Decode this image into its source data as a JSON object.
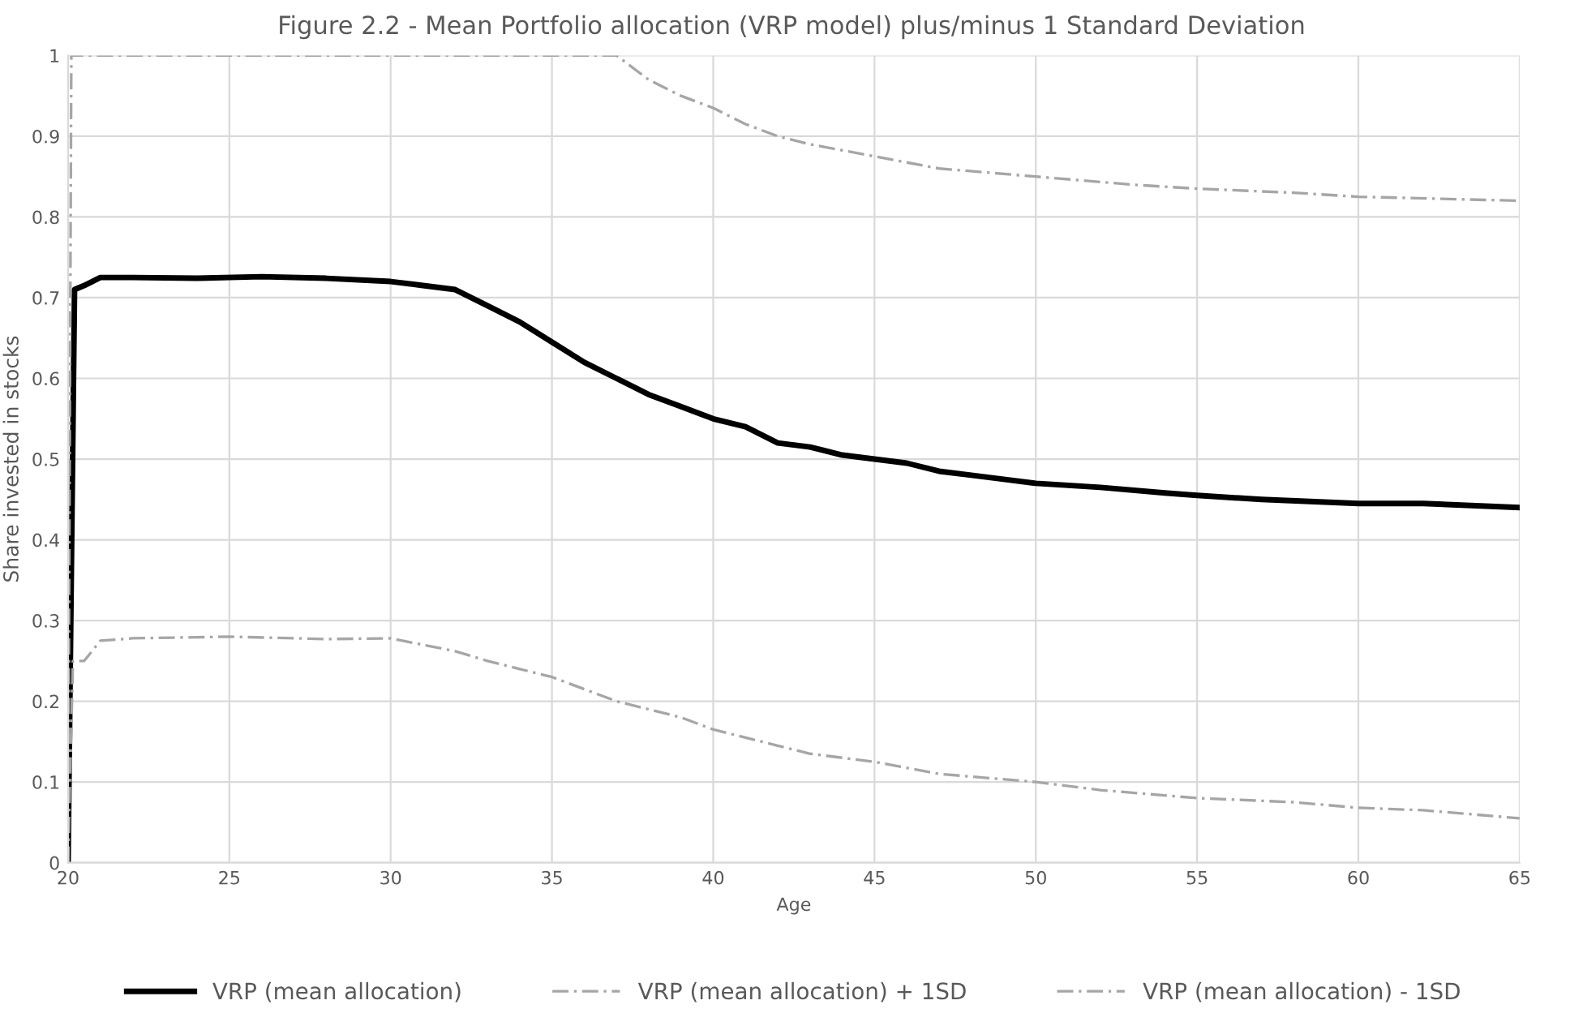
{
  "chart_data": {
    "type": "line",
    "title": "Figure 2.2 - Mean Portfolio allocation (VRP model) plus/minus 1 Standard Deviation",
    "xlabel": "Age",
    "ylabel": "Share invested in stocks",
    "xlim": [
      20,
      65
    ],
    "xticks": [
      20,
      25,
      30,
      35,
      40,
      45,
      50,
      55,
      60,
      65
    ],
    "ylim": [
      0,
      1
    ],
    "yticks": [
      0,
      0.1,
      0.2,
      0.3,
      0.4,
      0.5,
      0.6,
      0.7,
      0.8,
      0.9,
      1
    ],
    "grid": true,
    "legend": "bottom",
    "marker": "none",
    "series": [
      {
        "name": "VRP (mean allocation)",
        "color": "#000000",
        "line_style": "solid",
        "x": [
          20,
          20.2,
          20.5,
          21,
          22,
          24,
          26,
          28,
          30,
          31,
          32,
          33,
          34,
          35,
          36,
          37,
          38,
          39,
          40,
          41,
          42,
          43,
          44,
          45,
          46,
          47,
          48,
          49,
          50,
          52,
          54,
          55,
          57,
          60,
          62,
          65
        ],
        "values": [
          0,
          0.71,
          0.715,
          0.725,
          0.725,
          0.724,
          0.726,
          0.724,
          0.72,
          0.715,
          0.71,
          0.69,
          0.67,
          0.645,
          0.62,
          0.6,
          0.58,
          0.565,
          0.55,
          0.54,
          0.52,
          0.515,
          0.505,
          0.5,
          0.495,
          0.485,
          0.48,
          0.475,
          0.47,
          0.465,
          0.458,
          0.455,
          0.45,
          0.445,
          0.445,
          0.44
        ]
      },
      {
        "name": "VRP (mean allocation) + 1SD",
        "color": "#a6a6a6",
        "line_style": "dashdot",
        "x": [
          20,
          20.1,
          25,
          30,
          37,
          38,
          39,
          40,
          41,
          42,
          43,
          45,
          47,
          50,
          53,
          55,
          58,
          60,
          63,
          65
        ],
        "values": [
          0,
          1,
          1,
          1,
          1,
          0.97,
          0.95,
          0.935,
          0.915,
          0.9,
          0.89,
          0.875,
          0.86,
          0.85,
          0.84,
          0.835,
          0.83,
          0.825,
          0.822,
          0.82
        ]
      },
      {
        "name": "VRP (mean allocation) - 1SD",
        "color": "#a6a6a6",
        "line_style": "dashdot",
        "x": [
          20,
          20.15,
          20.5,
          21,
          22,
          25,
          28,
          30,
          31,
          32,
          33,
          34,
          35,
          36,
          37,
          38,
          39,
          40,
          41,
          42,
          43,
          45,
          47,
          50,
          52,
          55,
          58,
          60,
          62,
          65
        ],
        "values": [
          0,
          0.25,
          0.25,
          0.275,
          0.278,
          0.28,
          0.277,
          0.278,
          0.27,
          0.262,
          0.25,
          0.24,
          0.23,
          0.215,
          0.2,
          0.19,
          0.18,
          0.165,
          0.155,
          0.145,
          0.135,
          0.125,
          0.11,
          0.1,
          0.09,
          0.08,
          0.075,
          0.068,
          0.065,
          0.055
        ]
      }
    ]
  }
}
